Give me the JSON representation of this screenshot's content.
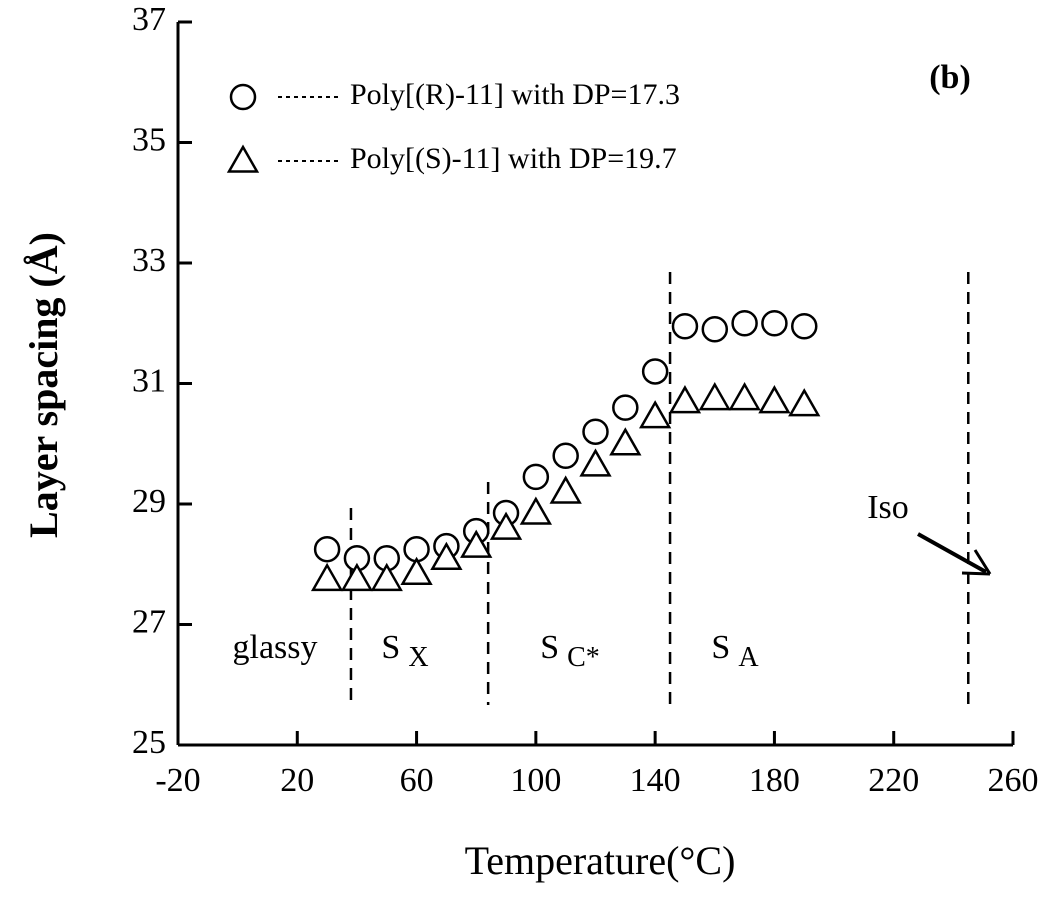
{
  "chart_data": {
    "type": "scatter",
    "x_label": "Temperature(°C)",
    "y_label": "Layer spacing (Å)",
    "panel_label": "(b)",
    "x": [
      30,
      40,
      50,
      60,
      70,
      80,
      90,
      100,
      110,
      120,
      130,
      140,
      150,
      160,
      170,
      180,
      190
    ],
    "series": [
      {
        "name": "Poly[(R)-11] with DP=17.3",
        "color": "#000000",
        "marker": "circle",
        "values": [
          28.25,
          28.1,
          28.1,
          28.25,
          28.3,
          28.55,
          28.85,
          29.45,
          29.8,
          30.2,
          30.6,
          31.2,
          31.95,
          31.9,
          32.0,
          32.0,
          31.95
        ]
      },
      {
        "name": "Poly[(S)-11] with DP=19.7",
        "color": "#000000",
        "marker": "triangle",
        "values": [
          27.75,
          27.75,
          27.75,
          27.85,
          28.1,
          28.3,
          28.6,
          28.85,
          29.2,
          29.65,
          30.0,
          30.45,
          30.7,
          30.75,
          30.75,
          30.7,
          30.65
        ]
      }
    ],
    "transitions": [
      38,
      84,
      145,
      245
    ],
    "phases": [
      {
        "text": "glassy"
      },
      {
        "text": "S",
        "sub": "X"
      },
      {
        "text": "S",
        "sub": "C*"
      },
      {
        "text": "S",
        "sub": "A"
      }
    ],
    "iso_label": "Iso",
    "xlim": [
      -20,
      260
    ],
    "xticks": [
      -20,
      20,
      60,
      100,
      140,
      180,
      220,
      260
    ],
    "ylim": [
      25,
      37
    ],
    "yticks": [
      25,
      27,
      29,
      31,
      33,
      35,
      37
    ]
  }
}
